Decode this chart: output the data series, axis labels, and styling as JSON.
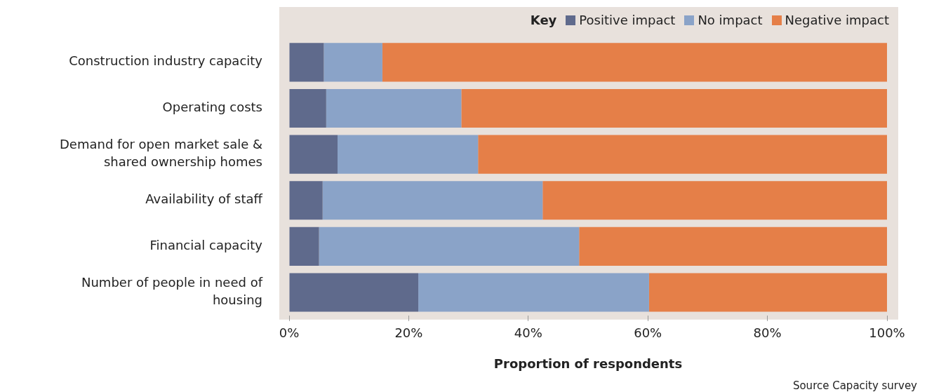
{
  "chart_data": {
    "type": "bar",
    "orientation": "horizontal",
    "stacked": true,
    "categories": [
      "Construction industry capacity",
      "Operating costs",
      "Demand for open market sale & shared ownership homes",
      "Availability of staff",
      "Financial capacity",
      "Number of people in need of housing"
    ],
    "series": [
      {
        "name": "Positive impact",
        "color": "#5f6a8c",
        "values": [
          5.8,
          6.2,
          8.1,
          5.6,
          5.0,
          21.6
        ]
      },
      {
        "name": "No impact",
        "color": "#8aa3c8",
        "values": [
          9.8,
          22.6,
          23.5,
          36.8,
          43.5,
          38.6
        ]
      },
      {
        "name": "Negative impact",
        "color": "#e57f48",
        "values": [
          84.4,
          71.2,
          68.4,
          57.6,
          51.5,
          39.8
        ]
      }
    ],
    "xlim": [
      0,
      100
    ],
    "xticks": [
      {
        "value": 0,
        "label": "0%"
      },
      {
        "value": 20,
        "label": "20%"
      },
      {
        "value": 40,
        "label": "40%"
      },
      {
        "value": 60,
        "label": "60%"
      },
      {
        "value": 80,
        "label": "80%"
      },
      {
        "value": 100,
        "label": "100%"
      }
    ],
    "xlabel": "Proportion of respondents",
    "legend": "top right",
    "legend_title": "Key",
    "grid": false,
    "annotations": [
      "Source Capacity survey"
    ]
  }
}
